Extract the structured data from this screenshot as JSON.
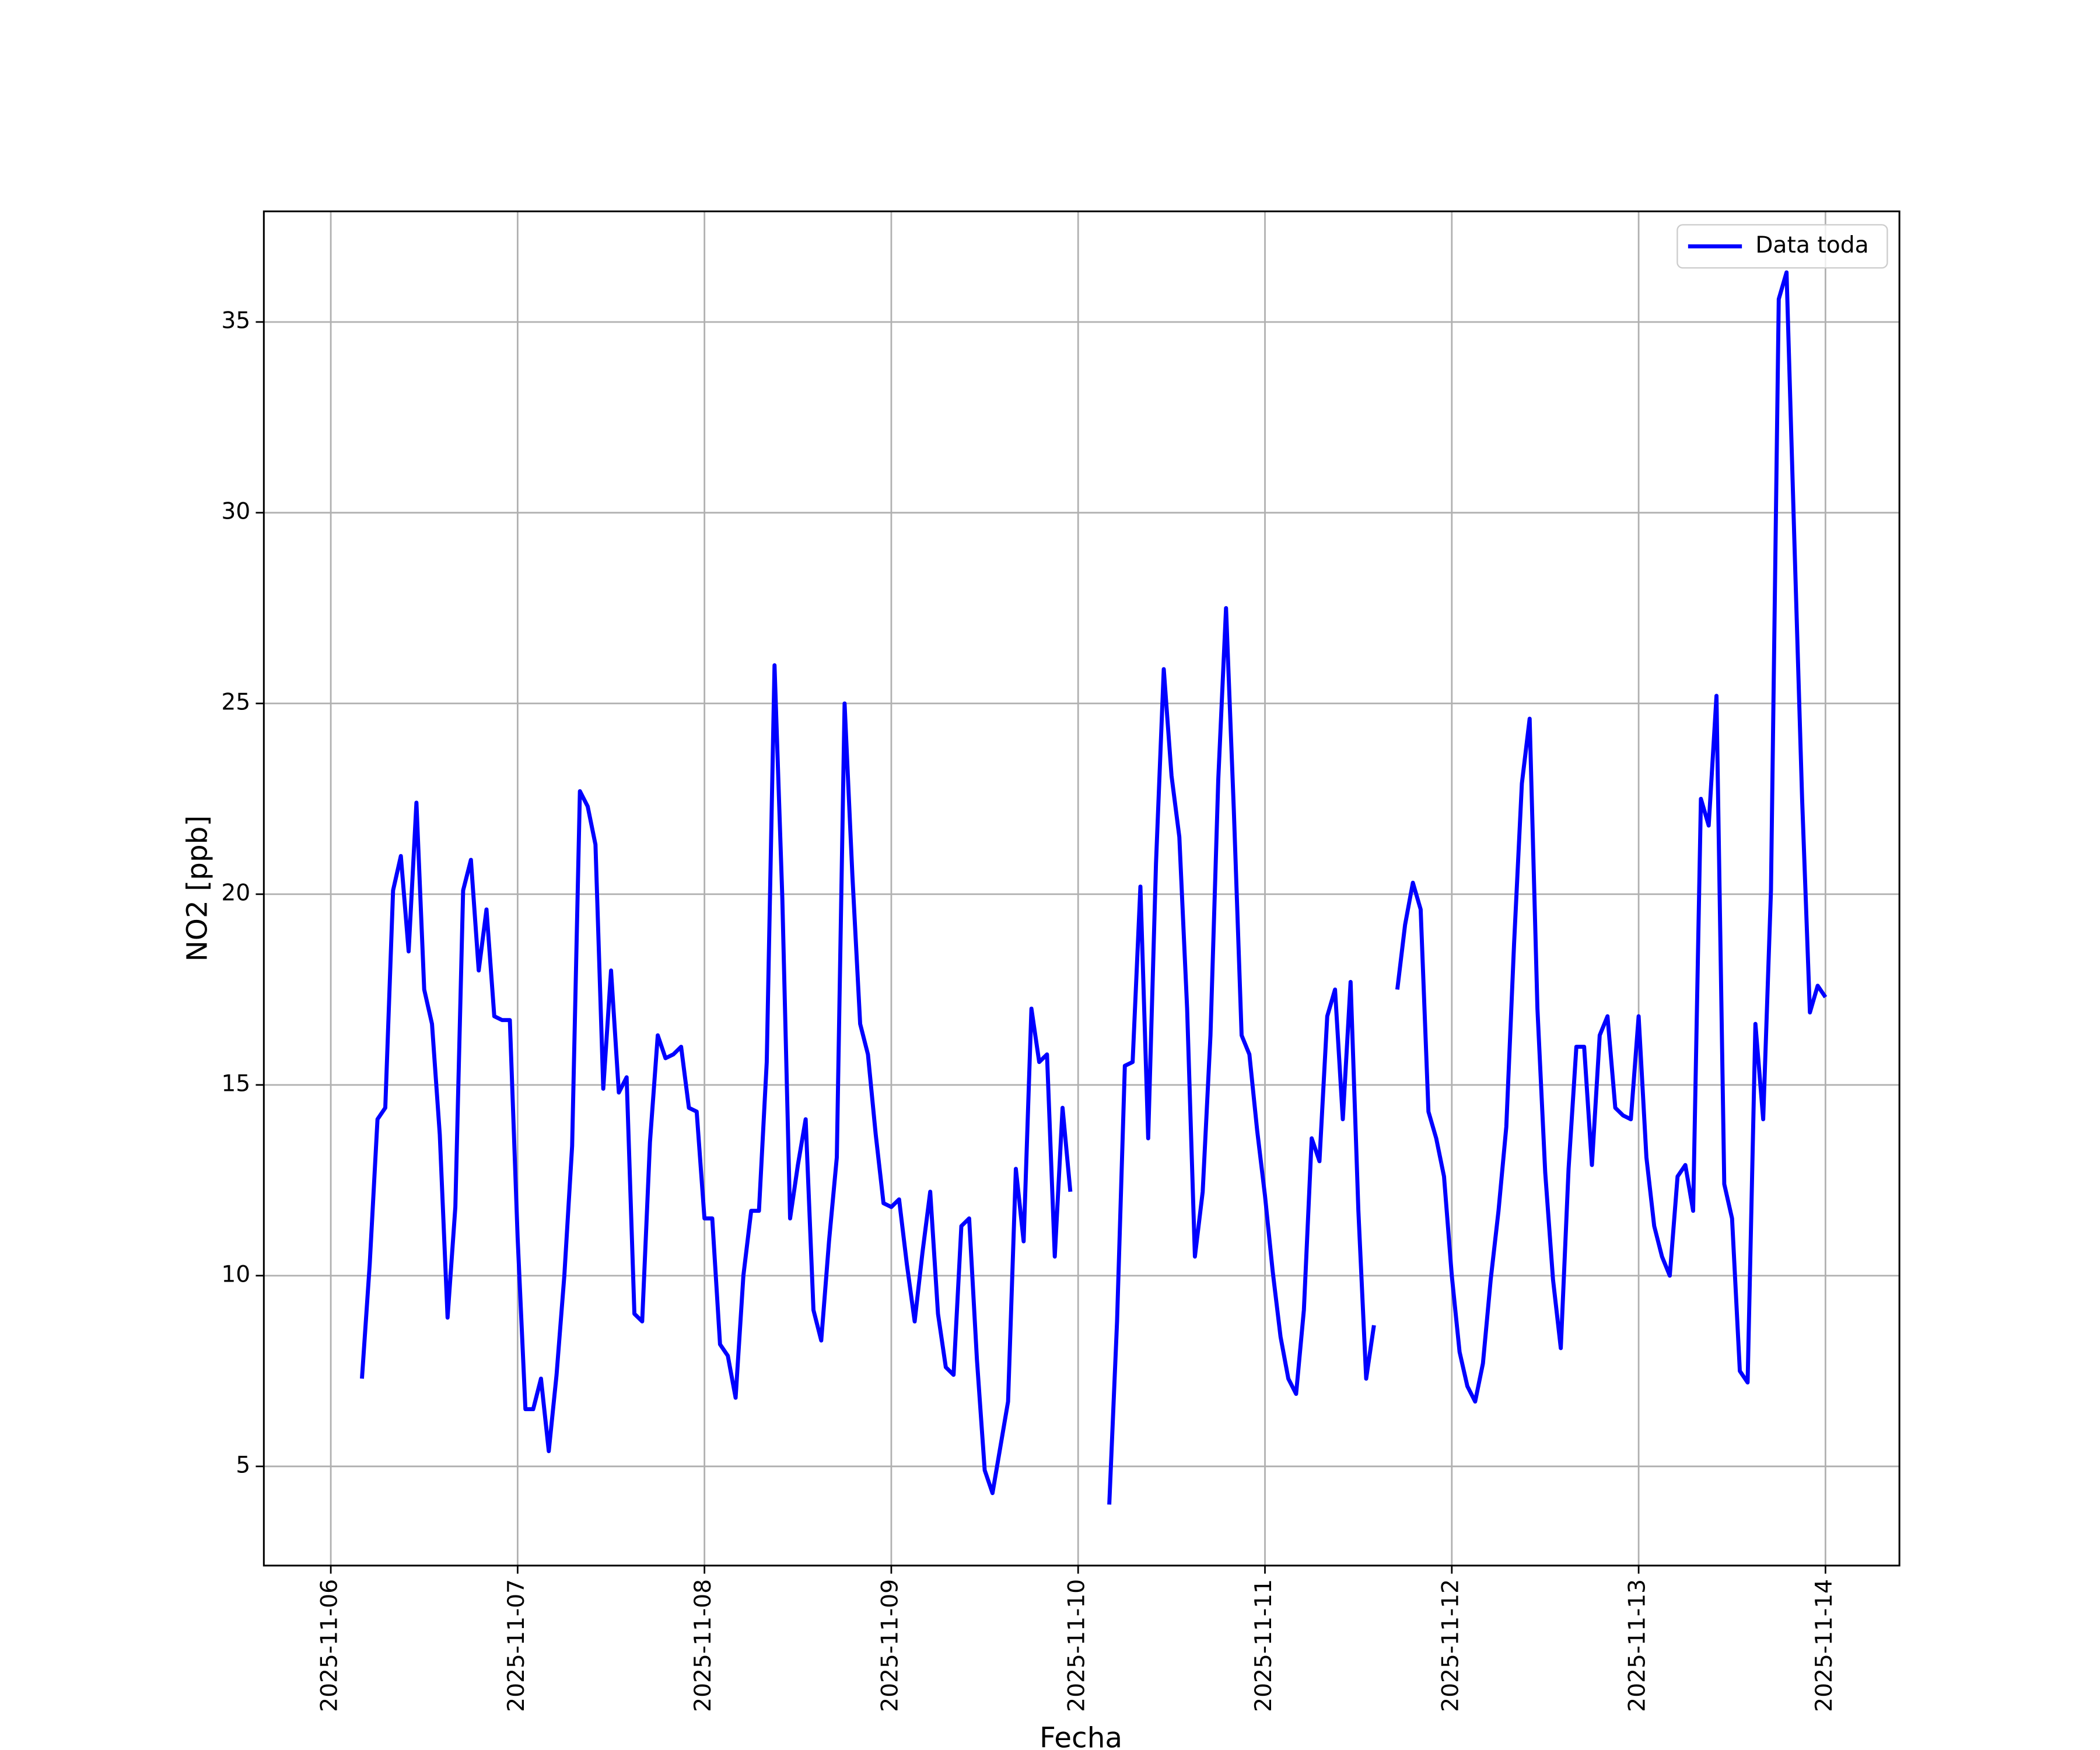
{
  "chart_data": {
    "type": "line",
    "xlabel": "Fecha",
    "ylabel": "NO2 [ppb]",
    "x": [
      4,
      5,
      6,
      7,
      8,
      9,
      10,
      11,
      12,
      13,
      14,
      15,
      16,
      17,
      18,
      19,
      20,
      21,
      22,
      23,
      24,
      25,
      26,
      27,
      28,
      29,
      30,
      31,
      32,
      33,
      34,
      35,
      36,
      37,
      38,
      39,
      40,
      41,
      42,
      43,
      44,
      45,
      46,
      47,
      48,
      49,
      50,
      51,
      52,
      53,
      54,
      55,
      56,
      57,
      58,
      59,
      60,
      61,
      62,
      63,
      64,
      65,
      66,
      67,
      68,
      69,
      70,
      71,
      72,
      73,
      74,
      75,
      76,
      77,
      78,
      79,
      80,
      81,
      82,
      83,
      84,
      85,
      86,
      87,
      88,
      89,
      90,
      91,
      92,
      93,
      94,
      95,
      96,
      100,
      101,
      102,
      103,
      104,
      105,
      106,
      107,
      108,
      109,
      110,
      111,
      112,
      113,
      114,
      115,
      116,
      117,
      118,
      119,
      120,
      121,
      122,
      123,
      124,
      125,
      126,
      127,
      128,
      129,
      130,
      131,
      132,
      133,
      134,
      135,
      137,
      138,
      139,
      140,
      141,
      142,
      143,
      144,
      145,
      146,
      147,
      148,
      149,
      150,
      151,
      152,
      153,
      154,
      155,
      156,
      157,
      158,
      159,
      160,
      161,
      162,
      163,
      164,
      165,
      166,
      167,
      168,
      169,
      170,
      171,
      172,
      173,
      174,
      175,
      176,
      177,
      178,
      179,
      180,
      181,
      182,
      183,
      184,
      185,
      186,
      187,
      188,
      189,
      190,
      191,
      192
    ],
    "series": [
      {
        "name": "Data toda",
        "color": "#0000ff",
        "values": [
          7.3,
          10.3,
          14.1,
          14.4,
          20.1,
          21.0,
          18.5,
          22.4,
          17.5,
          16.6,
          13.7,
          8.9,
          11.8,
          20.1,
          20.9,
          18.0,
          19.6,
          16.8,
          16.7,
          16.7,
          11.0,
          6.5,
          6.5,
          7.3,
          5.4,
          7.4,
          10.0,
          13.4,
          22.7,
          22.3,
          21.3,
          14.9,
          18.0,
          14.8,
          15.2,
          9.0,
          8.8,
          13.5,
          16.3,
          15.7,
          15.8,
          16.0,
          14.4,
          14.3,
          11.5,
          11.5,
          8.2,
          7.9,
          6.8,
          10.0,
          11.7,
          11.7,
          15.6,
          26.0,
          19.9,
          11.5,
          12.9,
          14.1,
          9.1,
          8.3,
          10.9,
          13.1,
          25.0,
          20.5,
          16.6,
          15.8,
          13.7,
          11.9,
          11.8,
          12.0,
          10.3,
          8.8,
          10.6,
          12.2,
          9.0,
          7.6,
          7.4,
          11.3,
          11.5,
          7.8,
          4.9,
          4.3,
          5.5,
          6.7,
          12.8,
          10.9,
          17.0,
          15.6,
          15.8,
          10.5,
          14.4,
          12.2,
          null,
          4.0,
          8.8,
          15.5,
          15.6,
          20.2,
          13.6,
          20.8,
          25.9,
          23.1,
          21.5,
          17.0,
          10.5,
          12.2,
          16.3,
          23.0,
          27.5,
          22.2,
          16.3,
          15.8,
          13.8,
          12.1,
          10.1,
          8.4,
          7.3,
          6.9,
          9.1,
          13.6,
          13.0,
          16.8,
          17.5,
          14.1,
          17.7,
          11.7,
          7.3,
          8.7,
          null,
          17.5,
          19.2,
          20.3,
          19.6,
          14.3,
          13.6,
          12.6,
          10.0,
          8.0,
          7.1,
          6.7,
          7.7,
          9.9,
          11.7,
          13.9,
          18.7,
          22.9,
          24.6,
          17.0,
          12.7,
          9.9,
          8.1,
          12.8,
          16.0,
          16.0,
          12.9,
          16.3,
          16.8,
          14.4,
          14.2,
          14.1,
          16.8,
          13.1,
          11.3,
          10.5,
          10.0,
          12.6,
          12.9,
          11.7,
          22.5,
          21.8,
          25.2,
          12.4,
          11.5,
          7.5,
          7.2,
          16.6,
          14.1,
          20.1,
          35.6,
          36.3,
          29.3,
          22.5,
          16.9,
          17.6,
          17.3
        ]
      }
    ],
    "xlim": [
      -8.6,
      201.5
    ],
    "xticks": [
      {
        "value": 0,
        "label": "2025-11-06"
      },
      {
        "value": 24,
        "label": "2025-11-07"
      },
      {
        "value": 48,
        "label": "2025-11-08"
      },
      {
        "value": 72,
        "label": "2025-11-09"
      },
      {
        "value": 96,
        "label": "2025-11-10"
      },
      {
        "value": 120,
        "label": "2025-11-11"
      },
      {
        "value": 144,
        "label": "2025-11-12"
      },
      {
        "value": 168,
        "label": "2025-11-13"
      },
      {
        "value": 192,
        "label": "2025-11-14"
      }
    ],
    "ylim": [
      2.4,
      37.9
    ],
    "yticks": [
      5,
      10,
      15,
      20,
      25,
      30,
      35
    ],
    "grid": true,
    "legend": "upper right"
  }
}
